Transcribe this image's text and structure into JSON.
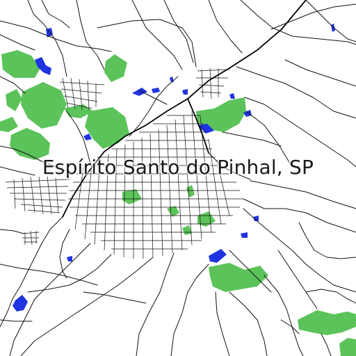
{
  "map": {
    "title": "Espírito Santo do Pinhal, SP",
    "colors": {
      "background": "#ffffff",
      "roads": "#111111",
      "green": "#5cc35a",
      "water": "#1f33e0"
    }
  }
}
